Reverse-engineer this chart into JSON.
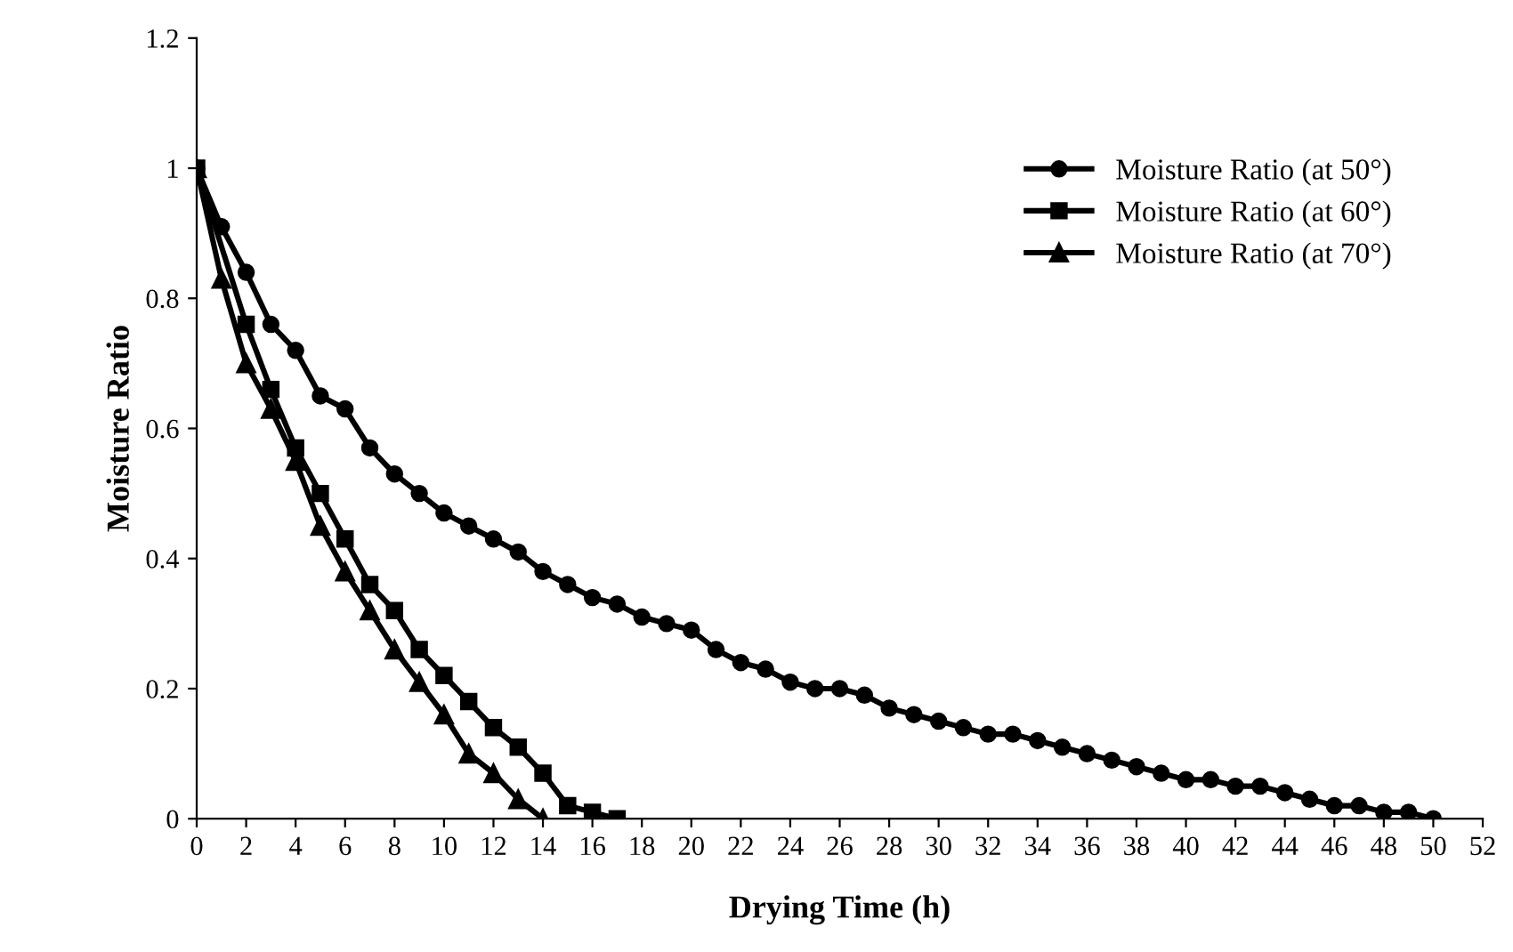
{
  "chart_data": {
    "type": "line",
    "xlabel": "Drying Time (h)",
    "ylabel": "Moisture Ratio",
    "xlim": [
      0,
      52
    ],
    "xticks": [
      0,
      2,
      4,
      6,
      8,
      10,
      12,
      14,
      16,
      18,
      20,
      22,
      24,
      26,
      28,
      30,
      32,
      34,
      36,
      38,
      40,
      42,
      44,
      46,
      48,
      50,
      52
    ],
    "ylim": [
      0,
      1.2
    ],
    "yticks": [
      0,
      {
        "value": 0.2,
        "label": "0.2"
      },
      {
        "value": 0.4,
        "label": "0.4"
      },
      {
        "value": 0.6,
        "label": "0.6"
      },
      {
        "value": 0.8,
        "label": "0.8"
      },
      1,
      {
        "value": 1.2,
        "label": "1.2"
      }
    ],
    "grid": false,
    "legend": "top right",
    "line_style": "solid",
    "series": [
      {
        "name": "Moisture Ratio (at 50°)",
        "color": "#000000",
        "marker": "circle",
        "x": [
          0,
          1,
          2,
          3,
          4,
          5,
          6,
          7,
          8,
          9,
          10,
          11,
          12,
          13,
          14,
          15,
          16,
          17,
          18,
          19,
          20,
          21,
          22,
          23,
          24,
          25,
          26,
          27,
          28,
          29,
          30,
          31,
          32,
          33,
          34,
          35,
          36,
          37,
          38,
          39,
          40,
          41,
          42,
          43,
          44,
          45,
          46,
          47,
          48,
          49,
          50
        ],
        "values": [
          1,
          0.91,
          0.84,
          0.76,
          0.72,
          0.65,
          0.63,
          0.57,
          0.53,
          0.5,
          0.47,
          0.45,
          0.43,
          0.41,
          0.38,
          0.36,
          0.34,
          0.33,
          0.31,
          0.3,
          0.29,
          0.26,
          0.24,
          0.23,
          0.21,
          0.2,
          0.2,
          0.19,
          0.17,
          0.16,
          0.15,
          0.14,
          0.13,
          0.13,
          0.12,
          0.11,
          0.1,
          0.09,
          0.08,
          0.07,
          0.06,
          0.06,
          0.05,
          0.05,
          0.04,
          0.03,
          0.02,
          0.02,
          0.01,
          0.01,
          0
        ]
      },
      {
        "name": "Moisture Ratio (at 60°)",
        "color": "#000000",
        "marker": "square",
        "x": [
          0,
          2,
          3,
          4,
          5,
          6,
          7,
          8,
          9,
          10,
          11,
          12,
          13,
          14,
          15,
          16,
          17
        ],
        "values": [
          1,
          0.76,
          0.66,
          0.57,
          0.5,
          0.43,
          0.36,
          0.32,
          0.26,
          0.22,
          0.18,
          0.14,
          0.11,
          0.07,
          0.02,
          0.01,
          0
        ]
      },
      {
        "name": "Moisture Ratio (at 70°)",
        "color": "#000000",
        "marker": "triangle",
        "x": [
          0,
          1,
          2,
          3,
          4,
          5,
          6,
          7,
          8,
          9,
          10,
          11,
          12,
          13,
          14
        ],
        "values": [
          1,
          0.83,
          0.7,
          0.63,
          0.55,
          0.45,
          0.38,
          0.32,
          0.26,
          0.21,
          0.16,
          0.1,
          0.07,
          0.03,
          0
        ]
      }
    ]
  }
}
